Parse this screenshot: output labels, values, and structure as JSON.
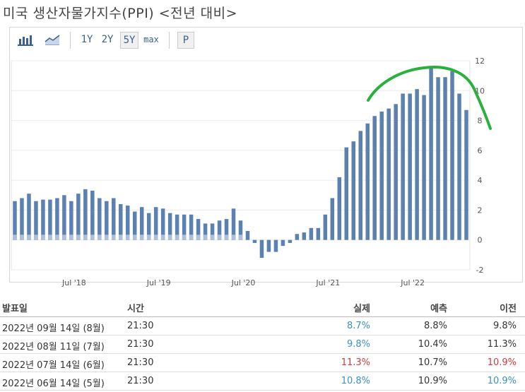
{
  "title": "미국 생산자물가지수(PPI) <전년 대비>",
  "toolbar": {
    "b1y": "1Y",
    "b2y": "2Y",
    "b5y": "5Y",
    "bmax": "max",
    "bp": "P"
  },
  "chart_data": {
    "type": "bar",
    "x_ticks": [
      "Jul '18",
      "Jul '19",
      "Jul '20",
      "Jul '21",
      "Jul '22"
    ],
    "y_ticks": [
      12,
      10,
      8,
      6,
      4,
      2,
      0,
      -2
    ],
    "ylim": [
      -2,
      12
    ],
    "grid": true,
    "values": [
      2.6,
      2.8,
      3.1,
      2.6,
      2.7,
      2.7,
      2.8,
      3.0,
      2.6,
      3.1,
      3.4,
      3.3,
      2.8,
      2.6,
      2.8,
      2.4,
      2.3,
      1.9,
      2.2,
      1.8,
      2.2,
      2.1,
      1.8,
      1.7,
      1.7,
      1.7,
      1.4,
      1.1,
      1.1,
      1.3,
      1.4,
      2.1,
      1.3,
      0.6,
      -0.2,
      -1.2,
      -0.8,
      -0.8,
      -0.4,
      -0.2,
      0.4,
      0.5,
      0.8,
      0.8,
      1.7,
      2.8,
      4.2,
      6.2,
      6.6,
      7.3,
      7.8,
      8.3,
      8.6,
      8.8,
      9.1,
      9.8,
      9.8,
      10.1,
      9.7,
      11.5,
      10.9,
      10.9,
      11.3,
      9.8,
      8.7
    ]
  },
  "table": {
    "headers": [
      "발표일",
      "시간",
      "실제",
      "예측",
      "이전"
    ],
    "rows": [
      {
        "date": "2022년 09월 14일 (8월)",
        "time": "21:30",
        "actual": "8.7%",
        "forecast": "8.8%",
        "previous": "9.8%",
        "actual_color": "#3a8fc8",
        "previous_color": "#333333"
      },
      {
        "date": "2022년 08월 11일 (7월)",
        "time": "21:30",
        "actual": "9.8%",
        "forecast": "10.4%",
        "previous": "11.3%",
        "actual_color": "#3a8fc8",
        "previous_color": "#333333"
      },
      {
        "date": "2022년 07월 14일 (6월)",
        "time": "21:30",
        "actual": "11.3%",
        "forecast": "10.7%",
        "previous": "10.9%",
        "actual_color": "#d23b3b",
        "previous_color": "#d23b3b"
      },
      {
        "date": "2022년 06월 14일 (5월)",
        "time": "21:30",
        "actual": "10.8%",
        "forecast": "10.9%",
        "previous": "10.9%",
        "actual_color": "#3a8fc8",
        "previous_color": "#3a8fc8"
      }
    ]
  }
}
